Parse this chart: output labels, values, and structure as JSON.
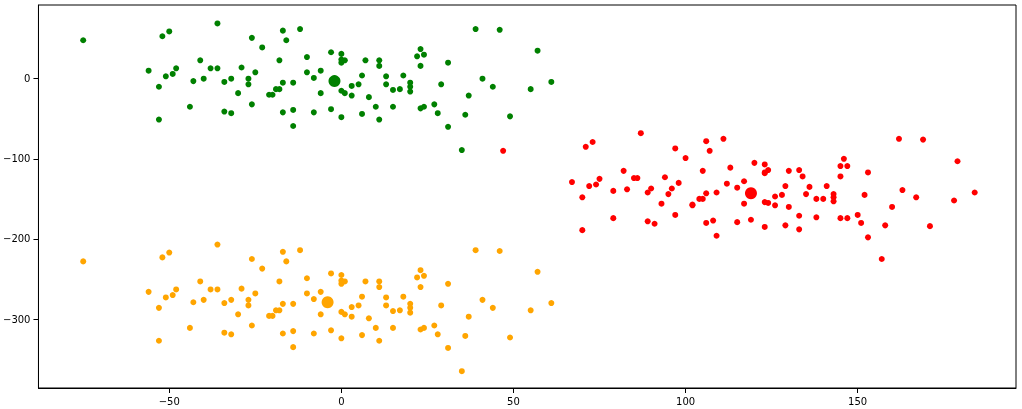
{
  "chart_data": {
    "type": "scatter",
    "xlim": [
      -88,
      196
    ],
    "ylim": [
      -386,
      92
    ],
    "xticks": [
      {
        "value": -50,
        "label": "−50"
      },
      0,
      50,
      100,
      150
    ],
    "yticks": [
      {
        "value": -300,
        "label": "−300"
      },
      {
        "value": -200,
        "label": "−200"
      },
      {
        "value": -100,
        "label": "−100"
      },
      0
    ],
    "grid": false,
    "marker": "circle",
    "series": [
      {
        "color": "#008000",
        "x": [
          -75,
          -52,
          -50,
          -36,
          -26,
          -23,
          -17,
          -16,
          -12,
          -41,
          -38,
          -36,
          -29,
          -18,
          -10,
          -56,
          -48,
          -49,
          -51,
          -53,
          -43,
          -40,
          -34,
          -32,
          -25,
          -27,
          -27,
          -30,
          -21,
          -20,
          -19,
          -18,
          -17,
          -14,
          -10,
          -8,
          -6,
          -6,
          -44,
          -34,
          -32,
          -26,
          -17,
          -14,
          -8,
          -3,
          -53,
          -14,
          -3,
          0,
          0,
          1,
          0,
          7,
          11,
          11,
          6,
          5,
          3,
          0,
          1,
          3,
          8,
          13,
          13,
          15,
          17,
          18,
          20,
          20,
          20,
          22,
          23,
          24,
          23,
          31,
          29,
          10,
          15,
          23,
          24,
          27,
          28,
          31,
          6,
          11,
          0,
          35,
          37,
          36,
          41,
          44,
          39,
          46,
          57,
          55,
          61,
          49
        ],
        "values": [
          48,
          53,
          59,
          69,
          51,
          39,
          60,
          48,
          62,
          23,
          13,
          13,
          14,
          23,
          27,
          10,
          13,
          6,
          3,
          -10,
          -3,
          0,
          -4,
          0,
          8,
          0,
          -7,
          -18,
          -20,
          -20,
          -13,
          -13,
          -5,
          -5,
          8,
          1,
          10,
          -18,
          -35,
          -41,
          -43,
          -32,
          -42,
          -39,
          -42,
          -38,
          -51,
          -59,
          33,
          31,
          24,
          23,
          20,
          23,
          23,
          16,
          4,
          -7,
          -9,
          -15,
          -18,
          -21,
          -23,
          3,
          -7,
          -14,
          -13,
          4,
          -10,
          -5,
          -16,
          28,
          37,
          30,
          16,
          20,
          -7,
          -35,
          -35,
          -37,
          -35,
          -32,
          -43,
          -60,
          -44,
          -51,
          -48,
          -89,
          -21,
          -45,
          0,
          -10,
          62,
          61,
          35,
          -13,
          -4,
          -47
        ]
      },
      {
        "color": "#ffa500",
        "x": [
          -75,
          -52,
          -50,
          -36,
          -26,
          -23,
          -17,
          -16,
          -12,
          -41,
          -38,
          -36,
          -29,
          -18,
          -10,
          -56,
          -48,
          -49,
          -51,
          -53,
          -43,
          -40,
          -34,
          -32,
          -25,
          -27,
          -27,
          -30,
          -21,
          -20,
          -19,
          -18,
          -17,
          -14,
          -10,
          -8,
          -6,
          -6,
          -44,
          -34,
          -32,
          -26,
          -17,
          -14,
          -8,
          -3,
          -53,
          -14,
          -3,
          0,
          0,
          1,
          0,
          7,
          11,
          11,
          6,
          5,
          3,
          0,
          1,
          3,
          8,
          13,
          13,
          15,
          17,
          18,
          20,
          20,
          20,
          22,
          23,
          24,
          23,
          31,
          29,
          10,
          15,
          23,
          24,
          27,
          28,
          31,
          6,
          11,
          0,
          35,
          37,
          36,
          41,
          44,
          39,
          46,
          57,
          55,
          61,
          49
        ],
        "values": [
          -228,
          -223,
          -217,
          -207,
          -225,
          -237,
          -216,
          -228,
          -214,
          -253,
          -263,
          -263,
          -262,
          -253,
          -249,
          -266,
          -263,
          -270,
          -273,
          -286,
          -279,
          -276,
          -280,
          -276,
          -268,
          -276,
          -283,
          -294,
          -296,
          -296,
          -289,
          -289,
          -281,
          -281,
          -268,
          -275,
          -266,
          -294,
          -311,
          -317,
          -319,
          -308,
          -318,
          -315,
          -318,
          -314,
          -327,
          -335,
          -243,
          -245,
          -252,
          -253,
          -256,
          -253,
          -253,
          -260,
          -272,
          -283,
          -285,
          -291,
          -294,
          -297,
          -299,
          -273,
          -283,
          -290,
          -289,
          -272,
          -286,
          -281,
          -292,
          -248,
          -239,
          -246,
          -260,
          -256,
          -283,
          -311,
          -311,
          -313,
          -311,
          -308,
          -319,
          -336,
          -320,
          -327,
          -324,
          -365,
          -297,
          -321,
          -276,
          -286,
          -214,
          -215,
          -241,
          -289,
          -280,
          -323
        ]
      },
      {
        "color": "#ff0000",
        "x": [
          87,
          71,
          73,
          67,
          72,
          74,
          75,
          70,
          70,
          79,
          82,
          83,
          79,
          85,
          86,
          89,
          90,
          89,
          91,
          93,
          94,
          96,
          95,
          98,
          97,
          97,
          100,
          102,
          102,
          104,
          105,
          105,
          106,
          107,
          111,
          106,
          109,
          106,
          108,
          109,
          113,
          112,
          115,
          115,
          117,
          117,
          119,
          120,
          123,
          123,
          124,
          123,
          123,
          124,
          126,
          126,
          123,
          128,
          129,
          130,
          130,
          129,
          133,
          134,
          133,
          133,
          136,
          135,
          138,
          140,
          138,
          141,
          143,
          143,
          143,
          145,
          146,
          147,
          145,
          145,
          147,
          150,
          151,
          152,
          153,
          153,
          157,
          160,
          158,
          162,
          163,
          167,
          169,
          171,
          178,
          179,
          184,
          47
        ],
        "values": [
          -68,
          -85,
          -79,
          -129,
          -134,
          -132,
          -125,
          -148,
          -189,
          -140,
          -115,
          -138,
          -174,
          -124,
          -124,
          -142,
          -137,
          -178,
          -181,
          -156,
          -123,
          -137,
          -144,
          -130,
          -170,
          -87,
          -99,
          -158,
          -157,
          -150,
          -150,
          -115,
          -78,
          -90,
          -75,
          -143,
          -142,
          -180,
          -177,
          -196,
          -111,
          -131,
          -136,
          -179,
          -128,
          -156,
          -176,
          -105,
          -107,
          -117,
          -114,
          -118,
          -154,
          -155,
          -147,
          -158,
          -185,
          -145,
          -134,
          -115,
          -160,
          -183,
          -114,
          -122,
          -171,
          -188,
          -135,
          -144,
          -150,
          -150,
          -173,
          -134,
          -148,
          -144,
          -153,
          -109,
          -100,
          -109,
          -122,
          -174,
          -174,
          -170,
          -180,
          -145,
          -117,
          -198,
          -225,
          -160,
          -183,
          -75,
          -139,
          -148,
          -76,
          -184,
          -152,
          -103,
          -142,
          -90
        ]
      },
      {
        "type": "bubble",
        "color": "#008000",
        "x": [
          -2
        ],
        "values": [
          -3
        ],
        "sizes": [
          1
        ]
      },
      {
        "type": "bubble",
        "color": "#ffa500",
        "x": [
          -4
        ],
        "values": [
          -279
        ],
        "sizes": [
          1
        ]
      },
      {
        "type": "bubble",
        "color": "#ff0000",
        "x": [
          119
        ],
        "values": [
          -143
        ],
        "sizes": [
          1
        ]
      }
    ]
  }
}
